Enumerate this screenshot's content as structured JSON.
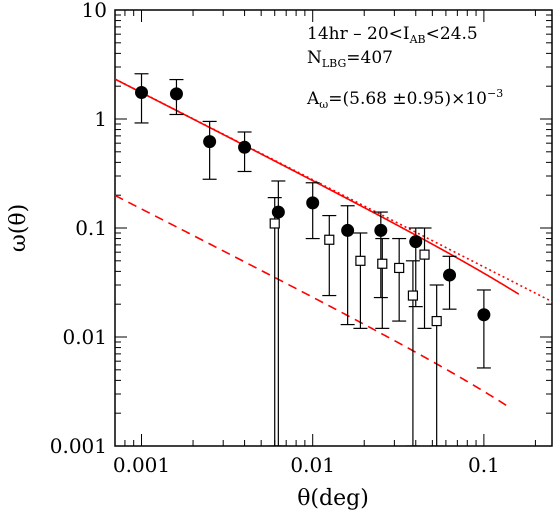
{
  "chart_data": {
    "type": "scatter",
    "xlabel": "θ(deg)",
    "ylabel": "ω(θ)",
    "xscale": "log",
    "yscale": "log",
    "xlim": [
      0.0007,
      0.25
    ],
    "ylim": [
      0.001,
      10
    ],
    "x_ticks": [
      {
        "value": 0.001,
        "label": "0.001"
      },
      {
        "value": 0.01,
        "label": "0.01"
      },
      {
        "value": 0.1,
        "label": "0.1"
      }
    ],
    "y_ticks": [
      {
        "value": 0.001,
        "label": "0.001"
      },
      {
        "value": 0.01,
        "label": "0.01"
      },
      {
        "value": 0.1,
        "label": "0.1"
      },
      {
        "value": 1,
        "label": "1"
      },
      {
        "value": 10,
        "label": "10"
      }
    ],
    "annotations": {
      "line1": {
        "main": "14hr  –  20<I",
        "sub": "AB",
        "tail": "<24.5"
      },
      "line2": {
        "main": "N",
        "sub": "LBG",
        "tail": "=407"
      },
      "line3": {
        "main": "A",
        "sub": "ω",
        "tail": "=(5.68  ±0.95)×10",
        "sup": "−3"
      }
    },
    "series": [
      {
        "marker": "filled-circle",
        "points": [
          {
            "x": 0.001,
            "y": 1.75,
            "ylo": 0.92,
            "yhi": 2.6
          },
          {
            "x": 0.0016,
            "y": 1.7,
            "ylo": 1.1,
            "yhi": 2.3
          },
          {
            "x": 0.0025,
            "y": 0.62,
            "ylo": 0.28,
            "yhi": 0.95
          },
          {
            "x": 0.004,
            "y": 0.55,
            "ylo": 0.33,
            "yhi": 0.76
          },
          {
            "x": 0.0063,
            "y": 0.14,
            "ylo": 0.001,
            "yhi": 0.27
          },
          {
            "x": 0.01,
            "y": 0.17,
            "ylo": 0.08,
            "yhi": 0.26
          },
          {
            "x": 0.016,
            "y": 0.095,
            "ylo": 0.013,
            "yhi": 0.16
          },
          {
            "x": 0.025,
            "y": 0.095,
            "ylo": 0.023,
            "yhi": 0.14
          },
          {
            "x": 0.04,
            "y": 0.075,
            "ylo": 0.019,
            "yhi": 0.1
          },
          {
            "x": 0.063,
            "y": 0.037,
            "ylo": 0.018,
            "yhi": 0.055
          },
          {
            "x": 0.1,
            "y": 0.016,
            "ylo": 0.0052,
            "yhi": 0.027
          }
        ]
      },
      {
        "marker": "open-square",
        "points": [
          {
            "x": 0.006,
            "y": 0.11,
            "ylo": 0.001,
            "yhi": 0.19
          },
          {
            "x": 0.0125,
            "y": 0.078,
            "ylo": 0.024,
            "yhi": 0.13
          },
          {
            "x": 0.019,
            "y": 0.05,
            "ylo": 0.012,
            "yhi": 0.09
          },
          {
            "x": 0.0255,
            "y": 0.047,
            "ylo": 0.012,
            "yhi": 0.08
          },
          {
            "x": 0.032,
            "y": 0.043,
            "ylo": 0.014,
            "yhi": 0.08
          },
          {
            "x": 0.0385,
            "y": 0.024,
            "ylo": 0.001,
            "yhi": 0.05
          },
          {
            "x": 0.045,
            "y": 0.057,
            "ylo": 0.012,
            "yhi": 0.1
          },
          {
            "x": 0.053,
            "y": 0.014,
            "ylo": 0.001,
            "yhi": 0.03
          }
        ]
      }
    ],
    "curves": [
      {
        "style": "solid",
        "color": "#ff0000",
        "A": 1.75,
        "slope": -0.8,
        "integral_constraint": 0.0055,
        "endpoint_x": 0.16
      },
      {
        "style": "dotted",
        "color": "#ff0000",
        "A": 1.75,
        "slope": -0.8
      },
      {
        "style": "dashed",
        "color": "#ff0000",
        "A": 0.15,
        "slope": -0.8,
        "integral_constraint": 0.0006,
        "endpoint_x": 0.135
      }
    ]
  }
}
